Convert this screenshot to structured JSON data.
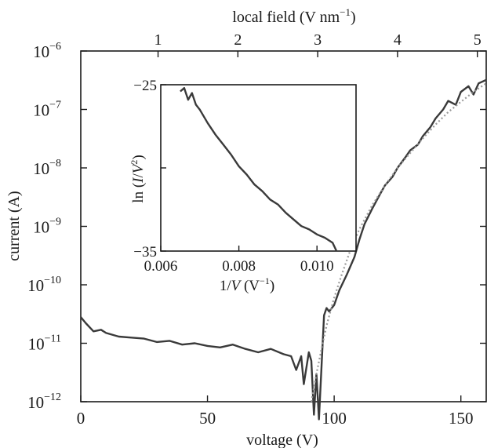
{
  "chart_data": [
    {
      "type": "line",
      "title": "",
      "xlabel": "voltage (V)",
      "ylabel": "current (A)",
      "x2label": "local field (V nm",
      "x2label_exp": "−1",
      "x2label_close": ")",
      "xlim": [
        0,
        160
      ],
      "ylim_log10": [
        -12,
        -6
      ],
      "y_scale": "log",
      "grid": false,
      "x_ticks": [
        {
          "value": 0,
          "label": "0"
        },
        {
          "value": 50,
          "label": "50"
        },
        {
          "value": 100,
          "label": "100"
        },
        {
          "value": 150,
          "label": "150"
        }
      ],
      "y_ticks": [
        {
          "exp": -12,
          "base": "10",
          "label": "−12"
        },
        {
          "exp": -11,
          "base": "10",
          "label": "−11"
        },
        {
          "exp": -10,
          "base": "10",
          "label": "−10"
        },
        {
          "exp": -9,
          "base": "10",
          "label": "−9"
        },
        {
          "exp": -8,
          "base": "10",
          "label": "−8"
        },
        {
          "exp": -7,
          "base": "10",
          "label": "−7"
        },
        {
          "exp": -6,
          "base": "10",
          "label": "−6"
        }
      ],
      "x2_ticks": [
        {
          "field": 1,
          "voltage": 30.5,
          "label": "1"
        },
        {
          "field": 2,
          "voltage": 62,
          "label": "2"
        },
        {
          "field": 3,
          "voltage": 93.5,
          "label": "3"
        },
        {
          "field": 4,
          "voltage": 125,
          "label": "4"
        },
        {
          "field": 5,
          "voltage": 156.5,
          "label": "5"
        }
      ],
      "series": [
        {
          "color": "#3a3a3a",
          "style": "solid",
          "x": [
            0,
            2,
            5,
            8,
            10,
            15,
            20,
            25,
            30,
            35,
            40,
            45,
            50,
            55,
            60,
            65,
            70,
            75,
            80,
            83,
            85,
            87,
            88,
            90,
            91,
            92,
            93,
            94,
            95,
            96,
            97,
            98,
            100,
            102,
            105,
            108,
            110,
            112,
            115,
            118,
            120,
            123,
            125,
            128,
            130,
            133,
            135,
            138,
            140,
            143,
            145,
            148,
            150,
            153,
            155,
            157,
            160
          ],
          "y": [
            2.8e-11,
            2.2e-11,
            1.6e-11,
            1.7e-11,
            1.5e-11,
            1.3e-11,
            1.25e-11,
            1.2e-11,
            1.05e-11,
            1.1e-11,
            9.5e-12,
            1e-11,
            9e-12,
            8.5e-12,
            9.5e-12,
            8e-12,
            7e-12,
            8e-12,
            6.5e-12,
            6e-12,
            3.5e-12,
            6e-12,
            2e-12,
            7e-12,
            5e-12,
            6e-13,
            3e-12,
            5e-13,
            4e-12,
            3e-11,
            4e-11,
            3.5e-11,
            4.5e-11,
            8e-11,
            1.5e-10,
            3e-10,
            6e-10,
            1.1e-09,
            2e-09,
            3.5e-09,
            5e-09,
            7e-09,
            1e-08,
            1.5e-08,
            2e-08,
            2.5e-08,
            3.5e-08,
            5e-08,
            7e-08,
            1e-07,
            1.4e-07,
            1.2e-07,
            2e-07,
            2.5e-07,
            1.8e-07,
            2.8e-07,
            3.2e-07
          ]
        },
        {
          "color": "#9a9a9a",
          "style": "dotted",
          "x": [
            91,
            93,
            95,
            97,
            100,
            103,
            106,
            110,
            115,
            120,
            125,
            130,
            135,
            140,
            145,
            150,
            155,
            160
          ],
          "y": [
            1e-12,
            3e-12,
            8e-12,
            2e-11,
            6e-11,
            1.5e-10,
            3.5e-10,
            9e-10,
            2.3e-09,
            5e-09,
            1e-08,
            1.8e-08,
            3.2e-08,
            5.5e-08,
            9e-08,
            1.35e-07,
            2e-07,
            2.8e-07
          ]
        }
      ]
    },
    {
      "type": "line",
      "title": "",
      "xlabel": "1/V (V−1)",
      "ylabel": "ln (I/V2)",
      "xlim": [
        0.006,
        0.011
      ],
      "ylim": [
        -35,
        -25
      ],
      "grid": false,
      "x_ticks": [
        {
          "value": 0.006,
          "label": "0.006"
        },
        {
          "value": 0.008,
          "label": "0.008"
        },
        {
          "value": 0.01,
          "label": "0.010"
        }
      ],
      "y_ticks": [
        {
          "value": -25,
          "label": "−25"
        },
        {
          "value": -30,
          "label": ""
        },
        {
          "value": -35,
          "label": "−35"
        }
      ],
      "series": [
        {
          "color": "#3a3a3a",
          "style": "solid",
          "x": [
            0.0065,
            0.0066,
            0.0067,
            0.0068,
            0.0069,
            0.007,
            0.0072,
            0.0074,
            0.0076,
            0.0078,
            0.008,
            0.0082,
            0.0084,
            0.0086,
            0.0088,
            0.009,
            0.0092,
            0.0094,
            0.0096,
            0.0098,
            0.01,
            0.0102,
            0.0104,
            0.0105
          ],
          "y": [
            -25.4,
            -25.2,
            -25.9,
            -25.5,
            -26.2,
            -26.5,
            -27.3,
            -28.0,
            -28.6,
            -29.2,
            -29.9,
            -30.4,
            -31.0,
            -31.4,
            -31.9,
            -32.2,
            -32.7,
            -33.1,
            -33.5,
            -33.7,
            -34.0,
            -34.2,
            -34.5,
            -35.0
          ]
        }
      ]
    }
  ]
}
